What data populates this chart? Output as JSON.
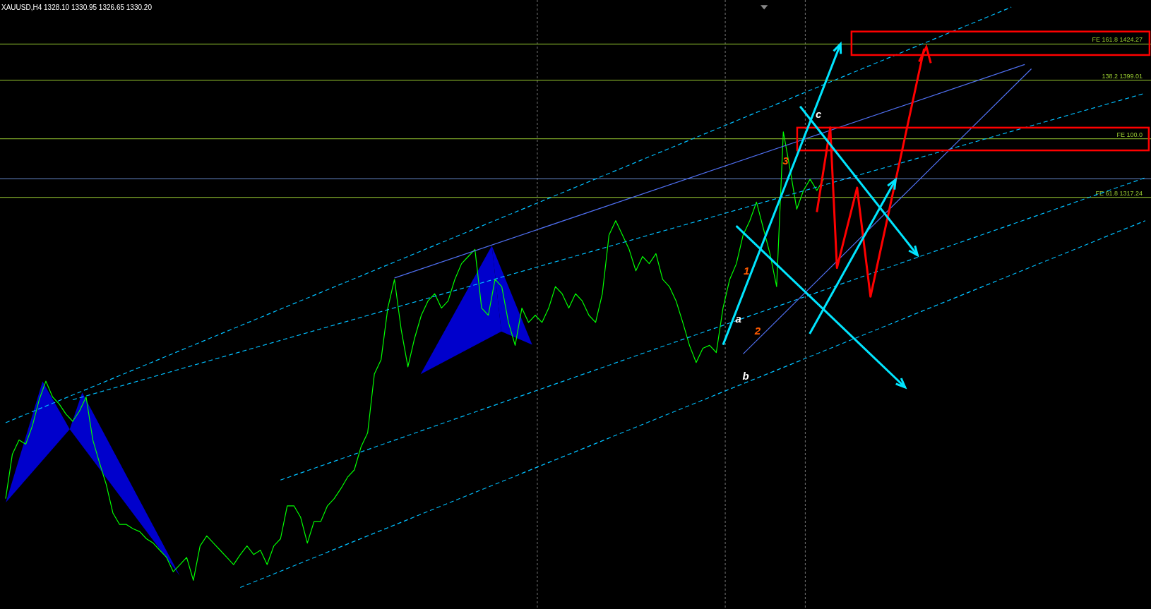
{
  "chart_data": {
    "type": "line",
    "title": "XAUUSD,H4 1328.10 1330.95 1326.65 1330.20",
    "categories": [
      null,
      null,
      null,
      null,
      null,
      null,
      null,
      null,
      null,
      null,
      null,
      null,
      null,
      null,
      null,
      null,
      null,
      null,
      null,
      null,
      null,
      null,
      null,
      null,
      null,
      null,
      null,
      null,
      null,
      null,
      null,
      null,
      null,
      null,
      null,
      null,
      null,
      null,
      null,
      null,
      null,
      null,
      null,
      null,
      null,
      null,
      null,
      null,
      null,
      null,
      null,
      null,
      null,
      null,
      null,
      null,
      null,
      null,
      null,
      null,
      null,
      null,
      null,
      null,
      null,
      null,
      null,
      null,
      null,
      null,
      null,
      null,
      null,
      null,
      null,
      null,
      null,
      null,
      null,
      null,
      null,
      null,
      null,
      null,
      null,
      null,
      null,
      null,
      null,
      null,
      null,
      null,
      null,
      null,
      null,
      null,
      null,
      null,
      null,
      null,
      null,
      null,
      null,
      null,
      null,
      null,
      null,
      null,
      null,
      null,
      null,
      null,
      null,
      null,
      null,
      null,
      null,
      null,
      null,
      null,
      null,
      null,
      null,
      null,
      null,
      null,
      null,
      null,
      null,
      null,
      null,
      null,
      null,
      null,
      null,
      null,
      null,
      null,
      null,
      null,
      null,
      null,
      null,
      null,
      null,
      null,
      null,
      null,
      null,
      null,
      null,
      null,
      null,
      null,
      null,
      null,
      null,
      null,
      null,
      null,
      null,
      null,
      null,
      null,
      null,
      null,
      null,
      null,
      null,
      null,
      null
    ],
    "series": [
      {
        "color": "#00ff00",
        "values": [
          1107,
          1138,
          1148,
          1145,
          1158,
          1176,
          1189,
          1178,
          1173,
          1166,
          1161,
          1168,
          1178,
          1148,
          1132,
          1117,
          1097,
          1089,
          1089,
          1086,
          1084,
          1079,
          1076,
          1071,
          1066,
          1056,
          1061,
          1066,
          1050,
          1074,
          1081,
          1076,
          1071,
          1066,
          1061,
          1068,
          1074,
          1068,
          1071,
          1061,
          1074,
          1079,
          1102,
          1102,
          1094,
          1076,
          1091,
          1091,
          1102,
          1107,
          1114,
          1122,
          1127,
          1143,
          1153,
          1194,
          1204,
          1240,
          1260,
          1225,
          1199,
          1219,
          1235,
          1245,
          1250,
          1240,
          1245,
          1260,
          1271,
          1276,
          1281,
          1240,
          1235,
          1260,
          1255,
          1230,
          1214,
          1240,
          1230,
          1235,
          1230,
          1240,
          1255,
          1250,
          1240,
          1250,
          1245,
          1235,
          1230,
          1250,
          1291,
          1301,
          1291,
          1281,
          1266,
          1276,
          1271,
          1278,
          1260,
          1255,
          1245,
          1230,
          1214,
          1202,
          1212,
          1214,
          1209,
          1240,
          1260,
          1271,
          1291,
          1301,
          1314,
          1296,
          1278,
          1255,
          1363,
          1337,
          1309,
          1322,
          1330,
          1322,
          1330,
          null,
          null,
          null,
          null,
          null,
          null,
          null,
          null,
          null,
          null,
          null,
          null,
          null,
          null,
          null,
          null,
          null,
          null,
          null,
          null,
          null,
          null,
          null,
          null,
          null,
          null,
          null,
          null,
          null,
          null,
          null,
          null,
          null,
          null,
          null,
          null,
          null,
          null,
          null,
          null,
          null,
          null,
          null,
          null,
          null,
          null,
          null,
          null
        ]
      },
      {
        "color": "#00bfff",
        "line_style": "dashed",
        "values": [
          1160,
          null,
          null,
          null,
          null,
          null,
          null,
          null,
          null,
          null,
          null,
          null,
          null,
          null,
          null,
          null,
          null,
          null,
          null,
          null,
          null,
          null,
          null,
          null,
          null,
          null,
          null,
          null,
          null,
          null,
          null,
          null,
          null,
          null,
          null,
          null,
          null,
          null,
          null,
          null,
          null,
          null,
          null,
          null,
          null,
          null,
          null,
          null,
          null,
          null,
          null,
          null,
          null,
          null,
          null,
          null,
          null,
          null,
          null,
          null,
          null,
          null,
          null,
          null,
          null,
          null,
          null,
          null,
          null,
          null,
          null,
          null,
          null,
          null,
          null,
          null,
          null,
          null,
          null,
          null,
          null,
          null,
          null,
          null,
          null,
          null,
          null,
          null,
          null,
          null,
          null,
          null,
          null,
          null,
          null,
          null,
          null,
          null,
          null,
          null,
          null,
          null,
          null,
          null,
          null,
          null,
          null,
          null,
          null,
          null,
          null,
          null,
          null,
          null,
          null,
          null,
          null,
          null,
          null,
          null,
          null,
          null,
          null,
          null,
          null,
          null,
          null,
          null,
          null,
          null,
          null,
          null,
          null,
          null,
          null,
          null,
          null,
          null,
          null,
          null,
          null,
          null,
          null,
          null,
          null,
          null,
          null,
          null,
          null,
          null,
          1450,
          null,
          null,
          null,
          null,
          null,
          null,
          null,
          null,
          null,
          null,
          null,
          null,
          null,
          null,
          null,
          null,
          null,
          null,
          null,
          null
        ]
      },
      {
        "color": "#00bfff",
        "line_style": "dashed",
        "values": [
          null,
          null,
          null,
          null,
          null,
          null,
          null,
          null,
          null,
          null,
          1176,
          null,
          null,
          null,
          null,
          null,
          null,
          null,
          null,
          null,
          null,
          null,
          null,
          null,
          null,
          null,
          null,
          null,
          null,
          null,
          null,
          null,
          null,
          null,
          null,
          null,
          null,
          null,
          null,
          null,
          null,
          null,
          null,
          null,
          null,
          null,
          null,
          null,
          null,
          null,
          null,
          null,
          null,
          null,
          null,
          null,
          null,
          null,
          null,
          null,
          null,
          null,
          null,
          null,
          null,
          null,
          null,
          null,
          null,
          null,
          null,
          null,
          null,
          null,
          null,
          null,
          null,
          null,
          null,
          null,
          null,
          null,
          null,
          null,
          null,
          null,
          null,
          null,
          null,
          null,
          null,
          null,
          null,
          null,
          null,
          null,
          null,
          null,
          null,
          null,
          null,
          null,
          null,
          null,
          null,
          null,
          null,
          null,
          null,
          null,
          null,
          null,
          null,
          null,
          null,
          null,
          null,
          null,
          null,
          null,
          null,
          null,
          null,
          null,
          null,
          null,
          null,
          null,
          null,
          null,
          null,
          null,
          null,
          null,
          null,
          null,
          null,
          null,
          null,
          null,
          null,
          null,
          null,
          null,
          null,
          null,
          null,
          null,
          null,
          null,
          null,
          null,
          null,
          null,
          null,
          null,
          null,
          null,
          null,
          null,
          null,
          null,
          null,
          null,
          null,
          null,
          null,
          null,
          null,
          null,
          1390
        ]
      },
      {
        "color": "#00bfff",
        "line_style": "dashed",
        "values": [
          null,
          null,
          null,
          null,
          null,
          null,
          null,
          null,
          null,
          null,
          null,
          null,
          null,
          null,
          null,
          null,
          null,
          null,
          null,
          null,
          null,
          null,
          null,
          null,
          null,
          null,
          null,
          null,
          null,
          null,
          null,
          null,
          null,
          null,
          null,
          null,
          null,
          null,
          null,
          null,
          null,
          1120,
          null,
          null,
          null,
          null,
          null,
          null,
          null,
          null,
          null,
          null,
          null,
          null,
          null,
          null,
          null,
          null,
          null,
          null,
          null,
          null,
          null,
          null,
          null,
          null,
          null,
          null,
          null,
          null,
          null,
          null,
          null,
          null,
          null,
          null,
          null,
          null,
          null,
          null,
          null,
          null,
          null,
          null,
          null,
          null,
          null,
          null,
          null,
          null,
          null,
          null,
          null,
          null,
          null,
          null,
          null,
          null,
          null,
          null,
          null,
          null,
          null,
          null,
          null,
          null,
          null,
          null,
          null,
          null,
          null,
          null,
          null,
          null,
          null,
          null,
          null,
          null,
          null,
          null,
          null,
          null,
          null,
          null,
          null,
          null,
          null,
          null,
          null,
          null,
          null,
          null,
          null,
          null,
          null,
          null,
          null,
          null,
          null,
          null,
          null,
          null,
          null,
          null,
          null,
          null,
          null,
          null,
          null,
          null,
          null,
          null,
          null,
          null,
          null,
          null,
          null,
          null,
          null,
          null,
          null,
          null,
          null,
          null,
          null,
          null,
          null,
          null,
          null,
          null,
          1331
        ]
      },
      {
        "color": "#00bfff",
        "line_style": "dashed",
        "values": [
          null,
          null,
          null,
          null,
          null,
          null,
          null,
          null,
          null,
          null,
          null,
          null,
          null,
          null,
          null,
          null,
          null,
          null,
          null,
          null,
          null,
          null,
          null,
          null,
          null,
          null,
          null,
          null,
          null,
          null,
          null,
          null,
          null,
          null,
          null,
          1045,
          null,
          null,
          null,
          null,
          null,
          null,
          null,
          null,
          null,
          null,
          null,
          null,
          null,
          null,
          null,
          null,
          null,
          null,
          null,
          null,
          null,
          null,
          null,
          null,
          null,
          null,
          null,
          null,
          null,
          null,
          null,
          null,
          null,
          null,
          null,
          null,
          null,
          null,
          null,
          null,
          null,
          null,
          null,
          null,
          null,
          null,
          null,
          null,
          null,
          null,
          null,
          null,
          null,
          null,
          null,
          null,
          null,
          null,
          null,
          null,
          null,
          null,
          null,
          null,
          null,
          null,
          null,
          null,
          null,
          null,
          null,
          null,
          null,
          null,
          null,
          null,
          null,
          null,
          null,
          null,
          null,
          null,
          null,
          null,
          null,
          null,
          null,
          null,
          null,
          null,
          null,
          null,
          null,
          null,
          null,
          null,
          null,
          null,
          null,
          null,
          null,
          null,
          null,
          null,
          null,
          null,
          null,
          null,
          null,
          null,
          null,
          null,
          null,
          null,
          null,
          null,
          null,
          null,
          null,
          null,
          null,
          null,
          null,
          null,
          null,
          null,
          null,
          null,
          null,
          null,
          null,
          null,
          null,
          null,
          1301
        ]
      },
      {
        "color": "#4f6ff0",
        "values": [
          null,
          null,
          null,
          null,
          null,
          null,
          null,
          null,
          null,
          null,
          null,
          null,
          null,
          null,
          null,
          null,
          null,
          null,
          null,
          null,
          null,
          null,
          null,
          null,
          null,
          null,
          null,
          null,
          null,
          null,
          null,
          null,
          null,
          null,
          null,
          null,
          null,
          null,
          null,
          null,
          null,
          null,
          null,
          null,
          null,
          null,
          null,
          null,
          null,
          null,
          null,
          null,
          null,
          null,
          null,
          null,
          null,
          null,
          1261,
          null,
          null,
          null,
          null,
          null,
          null,
          null,
          null,
          null,
          null,
          null,
          null,
          null,
          null,
          null,
          null,
          null,
          null,
          null,
          null,
          null,
          null,
          null,
          null,
          null,
          null,
          null,
          null,
          null,
          null,
          null,
          null,
          null,
          null,
          null,
          null,
          null,
          null,
          null,
          null,
          null,
          null,
          null,
          null,
          null,
          null,
          null,
          null,
          null,
          null,
          null,
          null,
          null,
          null,
          null,
          null,
          null,
          null,
          null,
          null,
          null,
          null,
          null,
          null,
          null,
          null,
          null,
          null,
          null,
          null,
          null,
          null,
          null,
          null,
          null,
          null,
          null,
          null,
          null,
          null,
          null,
          null,
          null,
          null,
          null,
          null,
          null,
          null,
          null,
          null,
          null,
          null,
          null,
          1410,
          null,
          null,
          null,
          null,
          null,
          null,
          null,
          null,
          null,
          null,
          null,
          null,
          null,
          null,
          null,
          null,
          null,
          null
        ]
      },
      {
        "color": "#4f6ff0",
        "values": [
          null,
          null,
          null,
          null,
          null,
          null,
          null,
          null,
          null,
          null,
          null,
          null,
          null,
          null,
          null,
          null,
          null,
          null,
          null,
          null,
          null,
          null,
          null,
          null,
          null,
          null,
          null,
          null,
          null,
          null,
          null,
          null,
          null,
          null,
          null,
          null,
          null,
          null,
          null,
          null,
          null,
          null,
          null,
          null,
          null,
          null,
          null,
          null,
          null,
          null,
          null,
          null,
          null,
          null,
          null,
          null,
          null,
          null,
          null,
          null,
          null,
          null,
          null,
          null,
          null,
          null,
          null,
          null,
          null,
          null,
          null,
          null,
          null,
          null,
          null,
          null,
          null,
          null,
          null,
          null,
          null,
          null,
          null,
          null,
          null,
          null,
          null,
          null,
          null,
          null,
          null,
          null,
          null,
          null,
          null,
          null,
          null,
          null,
          null,
          null,
          null,
          null,
          null,
          null,
          null,
          null,
          null,
          null,
          null,
          null,
          1208,
          null,
          null,
          null,
          null,
          null,
          null,
          null,
          null,
          null,
          null,
          null,
          null,
          null,
          null,
          null,
          null,
          null,
          null,
          null,
          null,
          null,
          null,
          null,
          null,
          null,
          null,
          null,
          null,
          null,
          null,
          null,
          null,
          null,
          null,
          null,
          null,
          null,
          null,
          null,
          null,
          null,
          null,
          1407,
          null,
          null,
          null,
          null,
          null,
          null,
          null,
          null,
          null,
          null,
          null,
          null,
          null,
          null,
          null,
          null,
          null
        ]
      },
      {
        "color": "#ff0000",
        "values": [
          null,
          null,
          null,
          null,
          null,
          null,
          null,
          null,
          null,
          null,
          null,
          null,
          null,
          null,
          null,
          null,
          null,
          null,
          null,
          null,
          null,
          null,
          null,
          null,
          null,
          null,
          null,
          null,
          null,
          null,
          null,
          null,
          null,
          null,
          null,
          null,
          null,
          null,
          null,
          null,
          null,
          null,
          null,
          null,
          null,
          null,
          null,
          null,
          null,
          null,
          null,
          null,
          null,
          null,
          null,
          null,
          null,
          null,
          null,
          null,
          null,
          null,
          null,
          null,
          null,
          null,
          null,
          null,
          null,
          null,
          null,
          null,
          null,
          null,
          null,
          null,
          null,
          null,
          null,
          null,
          null,
          null,
          null,
          null,
          null,
          null,
          null,
          null,
          null,
          null,
          null,
          null,
          null,
          null,
          null,
          null,
          null,
          null,
          null,
          null,
          null,
          null,
          null,
          null,
          null,
          null,
          null,
          null,
          null,
          null,
          null,
          null,
          null,
          null,
          null,
          null,
          null,
          null,
          null,
          null,
          null,
          1307,
          null,
          1366,
          1268,
          null,
          null,
          1324,
          null,
          1248,
          null,
          null,
          null,
          null,
          null,
          null,
          null,
          1421,
          null,
          null,
          null,
          null,
          null,
          null,
          null,
          null,
          null,
          null,
          null,
          null,
          null,
          null,
          null,
          null,
          null,
          null,
          null,
          null,
          null,
          null,
          null,
          null,
          null,
          null,
          null,
          null,
          null,
          null,
          null,
          null,
          null
        ]
      }
    ],
    "ylim": [
      1030,
      1455
    ],
    "tick_labels": false,
    "grid": false,
    "marker": "none",
    "line_style": "solid",
    "ref_lines": [
      {
        "axis": "y",
        "value": 1424.27,
        "label": "FE 161.8 1424.27",
        "color": "#9acd32"
      },
      {
        "axis": "y",
        "value": 1399.01,
        "label": "138.2 1399.01",
        "color": "#9acd32"
      },
      {
        "axis": "y",
        "value": 1358.13,
        "label": "FE 100.0",
        "color": "#9acd32"
      },
      {
        "axis": "y",
        "value": 1317.24,
        "label": "FE 61.8 1317.24",
        "color": "#9acd32"
      },
      {
        "axis": "y",
        "value": 1330.2,
        "label": null,
        "color": "#6a8ccf"
      }
    ],
    "annotations": [
      "a",
      "b",
      "c",
      "1",
      "2",
      "3"
    ]
  }
}
